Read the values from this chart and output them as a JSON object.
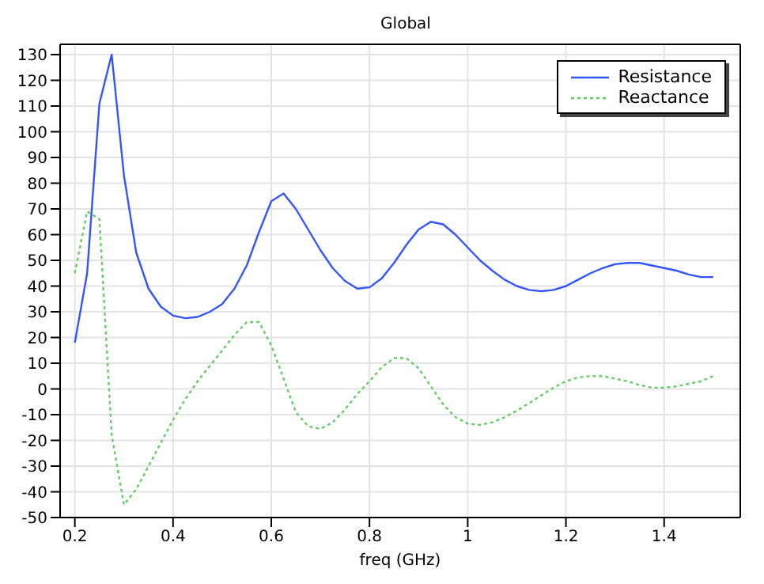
{
  "chart_data": {
    "type": "line",
    "title": "Global",
    "xlabel": "freq (GHz)",
    "x": [
      0.2,
      0.225,
      0.25,
      0.275,
      0.3,
      0.325,
      0.35,
      0.375,
      0.4,
      0.425,
      0.45,
      0.475,
      0.5,
      0.525,
      0.55,
      0.575,
      0.6,
      0.625,
      0.65,
      0.675,
      0.7,
      0.725,
      0.75,
      0.775,
      0.8,
      0.825,
      0.85,
      0.875,
      0.9,
      0.925,
      0.95,
      0.975,
      1.0,
      1.025,
      1.05,
      1.075,
      1.1,
      1.125,
      1.15,
      1.175,
      1.2,
      1.225,
      1.25,
      1.275,
      1.3,
      1.325,
      1.35,
      1.375,
      1.4,
      1.425,
      1.45,
      1.475,
      1.5
    ],
    "series": [
      {
        "name": "Resistance",
        "color": "#3355ff",
        "line_style": "solid",
        "values": [
          18,
          45,
          111,
          130,
          83,
          53,
          39,
          32,
          28.5,
          27.5,
          28,
          30,
          33,
          39,
          48,
          61,
          73,
          76,
          70,
          62,
          54,
          47,
          42,
          39,
          39.5,
          43,
          49,
          56,
          62,
          65,
          64,
          60,
          55,
          50,
          46,
          42.5,
          40,
          38.5,
          38,
          38.5,
          40,
          42.5,
          45,
          47,
          48.5,
          49,
          49,
          48,
          47,
          46,
          44.5,
          43.5,
          43.5
        ]
      },
      {
        "name": "Reactance",
        "color": "#66cc66",
        "line_style": "dotted",
        "values": [
          45,
          69,
          66,
          -18,
          -45,
          -39,
          -30,
          -21,
          -12,
          -4,
          3,
          9,
          15,
          21,
          26,
          26,
          17,
          4,
          -9,
          -14.5,
          -15.5,
          -13,
          -8,
          -2,
          3,
          8.5,
          12,
          12,
          8,
          1,
          -6,
          -11,
          -13.5,
          -14,
          -13,
          -11,
          -8.5,
          -5.5,
          -2.5,
          0.5,
          3,
          4.5,
          5,
          5,
          4,
          3,
          1.5,
          0.5,
          0.5,
          1,
          2,
          3,
          5
        ]
      }
    ],
    "xlim": [
      0.17,
      1.555
    ],
    "xticks": [
      0.2,
      0.4,
      0.6,
      0.8,
      1,
      1.2,
      1.4
    ],
    "ylim": [
      -50,
      134
    ],
    "yticks": [
      -50,
      -40,
      -30,
      -20,
      -10,
      0,
      10,
      20,
      30,
      40,
      50,
      60,
      70,
      80,
      90,
      100,
      110,
      120,
      130
    ],
    "grid": true,
    "legend": "top right",
    "marker": "none"
  }
}
